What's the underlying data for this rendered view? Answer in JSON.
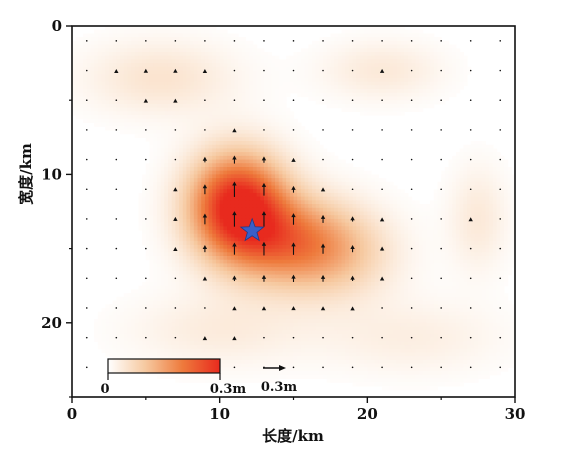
{
  "chart_data": {
    "type": "heatmap",
    "xlabel": "长度/km",
    "ylabel": "宽度/km",
    "xlim": [
      0,
      30
    ],
    "ylim": [
      0,
      25
    ],
    "x_ticks": [
      0,
      10,
      20,
      30
    ],
    "y_ticks": [
      0,
      10,
      20
    ],
    "y_axis_inverted": true,
    "colorbar": {
      "min": 0,
      "max": 0.3,
      "unit": "m",
      "min_label": "0",
      "max_label": "0.3m",
      "colors": [
        "#ffffff",
        "#f6c9a0",
        "#ee7a3c",
        "#e82a1e"
      ]
    },
    "arrow_scale_label": "0.3m",
    "arrow_scale_value": 0.3,
    "hypocenter": {
      "x": 12.2,
      "y": 13.8,
      "color": "#3a5fc8"
    },
    "slip_patches": [
      {
        "x": 11.2,
        "y": 12.0,
        "peak": 0.3,
        "sx": 3.2,
        "sy": 3.4
      },
      {
        "x": 14.5,
        "y": 14.5,
        "peak": 0.17,
        "sx": 4.4,
        "sy": 3.0
      },
      {
        "x": 18.0,
        "y": 15.5,
        "peak": 0.07,
        "sx": 4.0,
        "sy": 3.0
      },
      {
        "x": 6.0,
        "y": 3.5,
        "peak": 0.05,
        "sx": 5.0,
        "sy": 2.5
      },
      {
        "x": 21.0,
        "y": 3.0,
        "peak": 0.04,
        "sx": 4.0,
        "sy": 2.0
      },
      {
        "x": 27.5,
        "y": 13.0,
        "peak": 0.04,
        "sx": 2.0,
        "sy": 3.5
      },
      {
        "x": 10.0,
        "y": 20.5,
        "peak": 0.035,
        "sx": 6.0,
        "sy": 2.5
      },
      {
        "x": 23.0,
        "y": 21.0,
        "peak": 0.03,
        "sx": 6.0,
        "sy": 2.5
      }
    ],
    "arrow_grid": {
      "x_start": 1,
      "x_step": 2,
      "x_count": 15,
      "y_start": 1,
      "y_step": 2,
      "y_count": 12
    },
    "arrow_direction": "up"
  }
}
